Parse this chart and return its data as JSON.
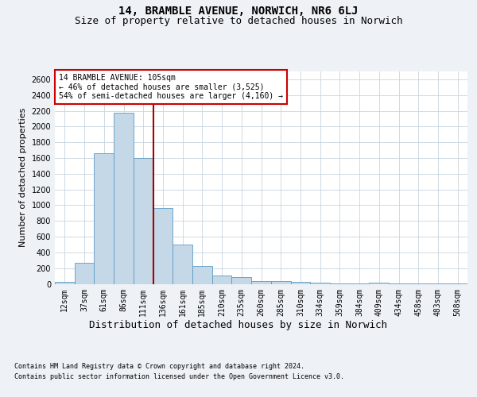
{
  "title": "14, BRAMBLE AVENUE, NORWICH, NR6 6LJ",
  "subtitle": "Size of property relative to detached houses in Norwich",
  "xlabel": "Distribution of detached houses by size in Norwich",
  "ylabel": "Number of detached properties",
  "footnote1": "Contains HM Land Registry data © Crown copyright and database right 2024.",
  "footnote2": "Contains public sector information licensed under the Open Government Licence v3.0.",
  "annotation_line1": "14 BRAMBLE AVENUE: 105sqm",
  "annotation_line2": "← 46% of detached houses are smaller (3,525)",
  "annotation_line3": "54% of semi-detached houses are larger (4,160) →",
  "bar_color": "#c5d8e8",
  "bar_edge_color": "#5b9ac4",
  "vline_color": "#aa0000",
  "vline_x": 4.5,
  "categories": [
    "12sqm",
    "37sqm",
    "61sqm",
    "86sqm",
    "111sqm",
    "136sqm",
    "161sqm",
    "185sqm",
    "210sqm",
    "235sqm",
    "260sqm",
    "285sqm",
    "310sqm",
    "334sqm",
    "359sqm",
    "384sqm",
    "409sqm",
    "434sqm",
    "458sqm",
    "483sqm",
    "508sqm"
  ],
  "values": [
    25,
    270,
    1660,
    2175,
    1600,
    960,
    500,
    230,
    110,
    90,
    40,
    35,
    25,
    20,
    10,
    5,
    15,
    5,
    5,
    10,
    5
  ],
  "ylim": [
    0,
    2700
  ],
  "yticks": [
    0,
    200,
    400,
    600,
    800,
    1000,
    1200,
    1400,
    1600,
    1800,
    2000,
    2200,
    2400,
    2600
  ],
  "background_color": "#eef2f6",
  "plot_background": "#ffffff",
  "title_fontsize": 10,
  "subtitle_fontsize": 9,
  "ylabel_fontsize": 8,
  "xlabel_fontsize": 9,
  "tick_fontsize": 7,
  "footnote_fontsize": 6,
  "annotation_fontsize": 7
}
